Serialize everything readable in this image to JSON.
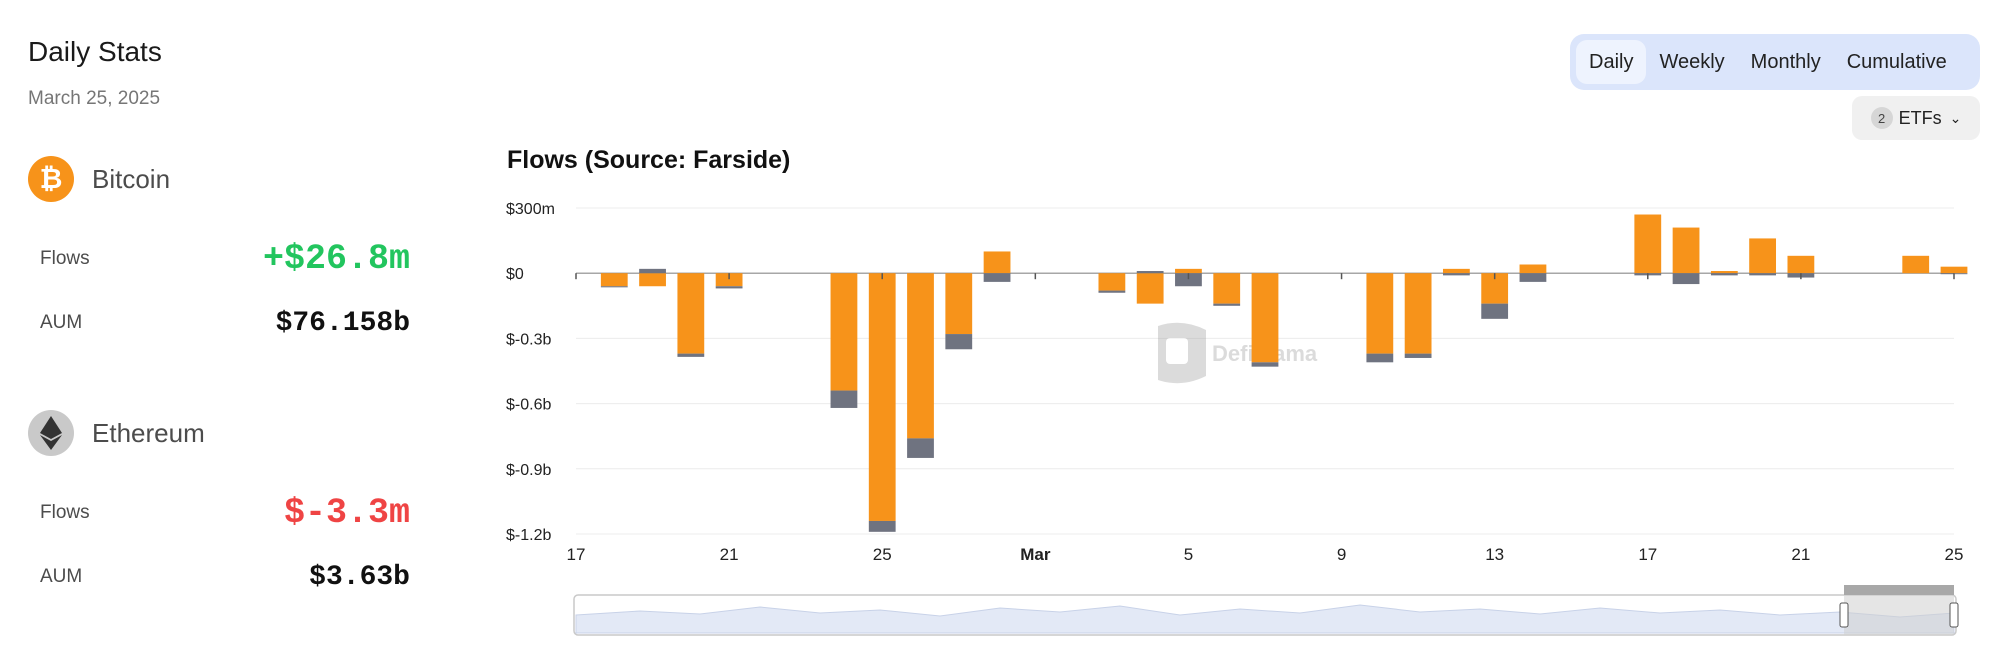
{
  "stats": {
    "title": "Daily Stats",
    "date": "March 25, 2025",
    "bitcoin": {
      "name": "Bitcoin",
      "icon": "bitcoin-icon",
      "flows_label": "Flows",
      "flows_value": "+$26.8m",
      "aum_label": "AUM",
      "aum_value": "$76.158b"
    },
    "ethereum": {
      "name": "Ethereum",
      "icon": "ethereum-icon",
      "flows_label": "Flows",
      "flows_value": "$-3.3m",
      "aum_label": "AUM",
      "aum_value": "$3.63b"
    }
  },
  "controls": {
    "periods": [
      "Daily",
      "Weekly",
      "Monthly",
      "Cumulative"
    ],
    "active_period": "Daily",
    "etf_count": "2",
    "etf_label": "ETFs"
  },
  "colors": {
    "bitcoin": "#f7931a",
    "ethereum": "#6f7380",
    "positive": "#22c55e",
    "negative": "#ef4444",
    "segment_bg": "#dbe5fb"
  },
  "watermark": "DefiLlama",
  "chart_data": {
    "type": "bar",
    "stacked": true,
    "title": "Flows (Source: Farside)",
    "xlabel": "",
    "ylabel": "",
    "ylim": [
      -1.2,
      0.3
    ],
    "y_ticks": [
      0.3,
      0,
      -0.3,
      -0.6,
      -0.9,
      -1.2
    ],
    "y_tick_labels": [
      "$300m",
      "$0",
      "$-0.3b",
      "$-0.6b",
      "$-0.9b",
      "$-1.2b"
    ],
    "x_range": [
      "2025-02-17",
      "2025-03-25"
    ],
    "x_ticks": [
      "2025-02-17",
      "2025-02-21",
      "2025-02-25",
      "2025-03-01",
      "2025-03-05",
      "2025-03-09",
      "2025-03-13",
      "2025-03-17",
      "2025-03-21",
      "2025-03-25"
    ],
    "x_tick_labels": [
      "17",
      "21",
      "25",
      "Mar",
      "5",
      "9",
      "13",
      "17",
      "21",
      "25"
    ],
    "grid": true,
    "legend": "none",
    "series": [
      {
        "name": "Bitcoin",
        "color": "#f7931a",
        "dates": [
          "2025-02-18",
          "2025-02-19",
          "2025-02-20",
          "2025-02-21",
          "2025-02-24",
          "2025-02-25",
          "2025-02-26",
          "2025-02-27",
          "2025-02-28",
          "2025-03-03",
          "2025-03-04",
          "2025-03-05",
          "2025-03-06",
          "2025-03-07",
          "2025-03-10",
          "2025-03-11",
          "2025-03-12",
          "2025-03-13",
          "2025-03-14",
          "2025-03-17",
          "2025-03-18",
          "2025-03-19",
          "2025-03-20",
          "2025-03-21",
          "2025-03-24",
          "2025-03-25"
        ],
        "values": [
          -0.06,
          -0.06,
          -0.37,
          -0.06,
          -0.54,
          -1.14,
          -0.76,
          -0.28,
          0.1,
          -0.08,
          -0.14,
          0.02,
          -0.14,
          -0.41,
          -0.37,
          -0.37,
          0.02,
          -0.14,
          0.04,
          0.27,
          0.21,
          0.01,
          0.16,
          0.08,
          0.08,
          0.03
        ]
      },
      {
        "name": "Ethereum",
        "color": "#6f7380",
        "dates": [
          "2025-02-18",
          "2025-02-19",
          "2025-02-20",
          "2025-02-21",
          "2025-02-24",
          "2025-02-25",
          "2025-02-26",
          "2025-02-27",
          "2025-02-28",
          "2025-03-03",
          "2025-03-04",
          "2025-03-05",
          "2025-03-06",
          "2025-03-07",
          "2025-03-10",
          "2025-03-11",
          "2025-03-12",
          "2025-03-13",
          "2025-03-14",
          "2025-03-17",
          "2025-03-18",
          "2025-03-19",
          "2025-03-20",
          "2025-03-21",
          "2025-03-24",
          "2025-03-25"
        ],
        "values": [
          -0.005,
          0.02,
          -0.015,
          -0.01,
          -0.08,
          -0.05,
          -0.09,
          -0.07,
          -0.04,
          -0.01,
          0.01,
          -0.06,
          -0.01,
          -0.02,
          -0.04,
          -0.02,
          -0.01,
          -0.07,
          -0.04,
          -0.01,
          -0.05,
          -0.01,
          -0.01,
          -0.02,
          0,
          -0.003
        ]
      }
    ],
    "overview_window": [
      "2025-02-17",
      "2025-03-25"
    ]
  }
}
